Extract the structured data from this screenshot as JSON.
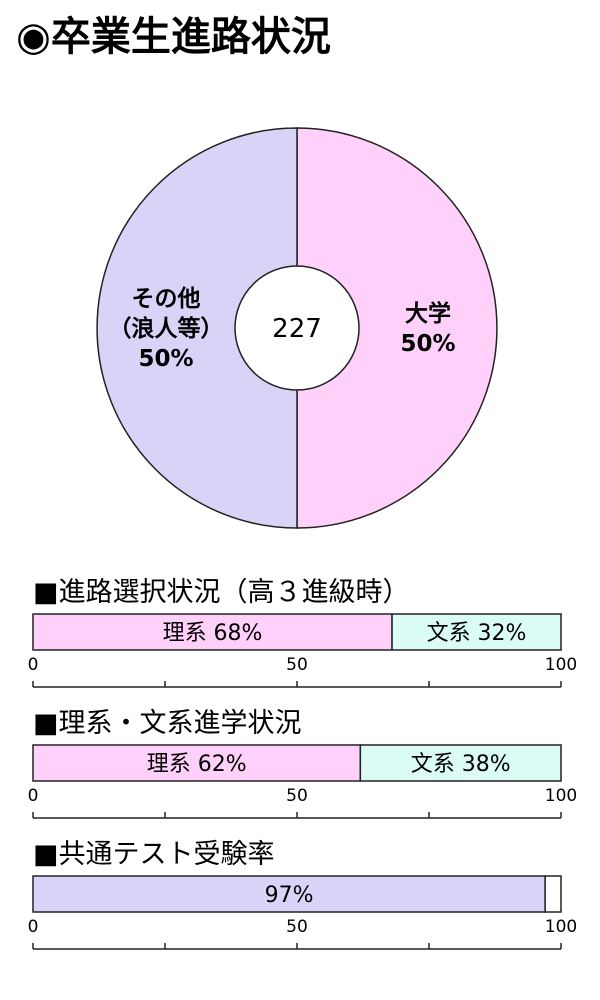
{
  "title": "◉卒業生進路状況",
  "colors": {
    "pink": "#FED0FA",
    "cyan": "#DAFCF5",
    "lavender": "#D8D4F8",
    "outline": "#222222"
  },
  "chart_data": [
    {
      "type": "pie",
      "style": "donut",
      "center_label": "227",
      "slices": [
        {
          "label": [
            "大学",
            "50%"
          ],
          "value": 50,
          "color": "#FED0FA"
        },
        {
          "label": [
            "その他",
            "（浪人等）",
            "50%"
          ],
          "value": 50,
          "color": "#D8D4F8"
        }
      ]
    },
    {
      "type": "bar",
      "orientation": "horizontal-stacked",
      "title": "■進路選択状況（高３進級時）",
      "segments": [
        {
          "label": "理系 68%",
          "value": 68,
          "color": "#FED0FA"
        },
        {
          "label": "文系 32%",
          "value": 32,
          "color": "#DAFCF5"
        }
      ],
      "xlim": [
        0,
        100
      ],
      "tick_labels": [
        "0",
        "50",
        "100"
      ]
    },
    {
      "type": "bar",
      "orientation": "horizontal-stacked",
      "title": "■理系・文系進学状況",
      "segments": [
        {
          "label": "理系 62%",
          "value": 62,
          "color": "#FED0FA"
        },
        {
          "label": "文系 38%",
          "value": 38,
          "color": "#DAFCF5"
        }
      ],
      "xlim": [
        0,
        100
      ],
      "tick_labels": [
        "0",
        "50",
        "100"
      ]
    },
    {
      "type": "bar",
      "orientation": "horizontal-stacked",
      "title": "■共通テスト受験率",
      "segments": [
        {
          "label": "97%",
          "value": 97,
          "color": "#D8D4F8"
        },
        {
          "label": "",
          "value": 3,
          "color": "#FFFFFF"
        }
      ],
      "xlim": [
        0,
        100
      ],
      "tick_labels": [
        "0",
        "50",
        "100"
      ]
    }
  ]
}
